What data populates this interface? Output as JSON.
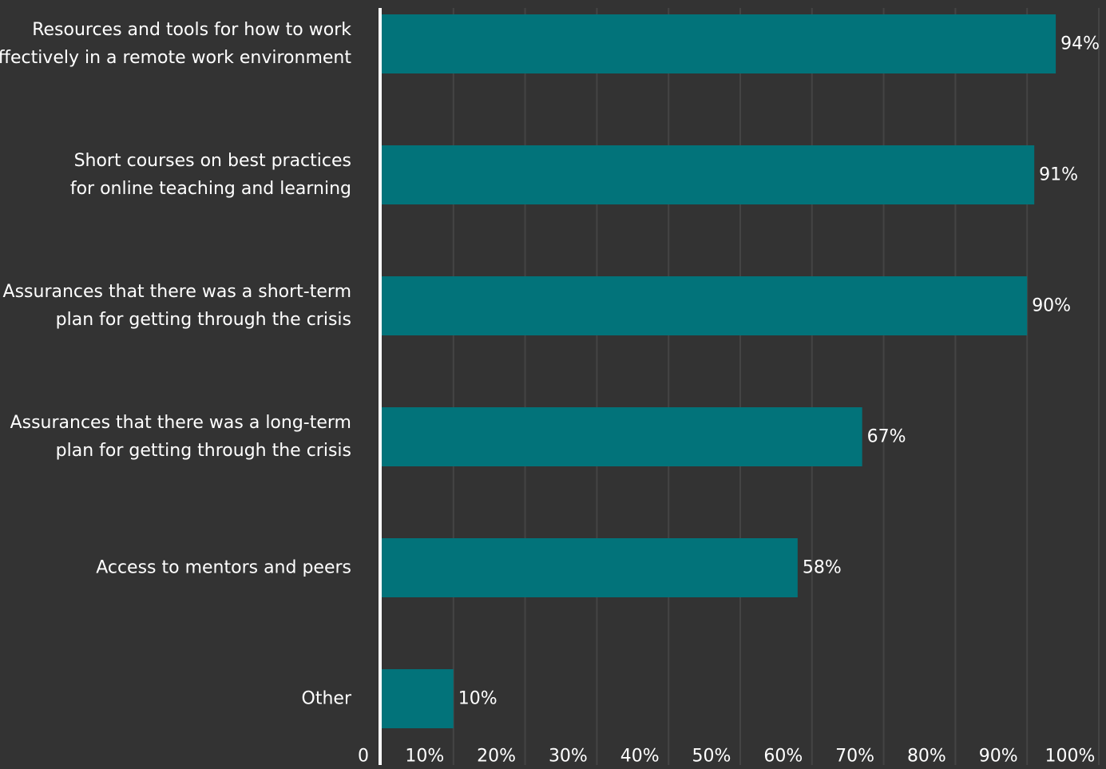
{
  "chart_data": {
    "type": "bar",
    "orientation": "horizontal",
    "categories": [
      [
        "Resources and tools for how to work",
        "effectively in a remote work environment"
      ],
      [
        "Short courses on best practices",
        "for online teaching and learning"
      ],
      [
        "Assurances that there was a short-term",
        "plan for getting through the crisis"
      ],
      [
        "Assurances that there was a long-term",
        "plan for getting through the crisis"
      ],
      [
        "Access to mentors and peers"
      ],
      [
        "Other"
      ]
    ],
    "values": [
      94,
      91,
      90,
      67,
      58,
      10
    ],
    "value_labels": [
      "94%",
      "91%",
      "90%",
      "67%",
      "58%",
      "10%"
    ],
    "x_ticks": [
      0,
      10,
      20,
      30,
      40,
      50,
      60,
      70,
      80,
      90,
      100
    ],
    "x_tick_labels": [
      "0",
      "10%",
      "20%",
      "30%",
      "40%",
      "50%",
      "60%",
      "70%",
      "80%",
      "90%",
      "100%"
    ],
    "xlim": [
      0,
      100
    ],
    "title": "",
    "xlabel": "",
    "ylabel": "",
    "grid": "vertical",
    "legend": "none",
    "colors": {
      "background": "#333333",
      "bar": "#02737A",
      "text": "#FFFFFF",
      "grid": "#444444",
      "axis": "#FFFFFF"
    }
  }
}
